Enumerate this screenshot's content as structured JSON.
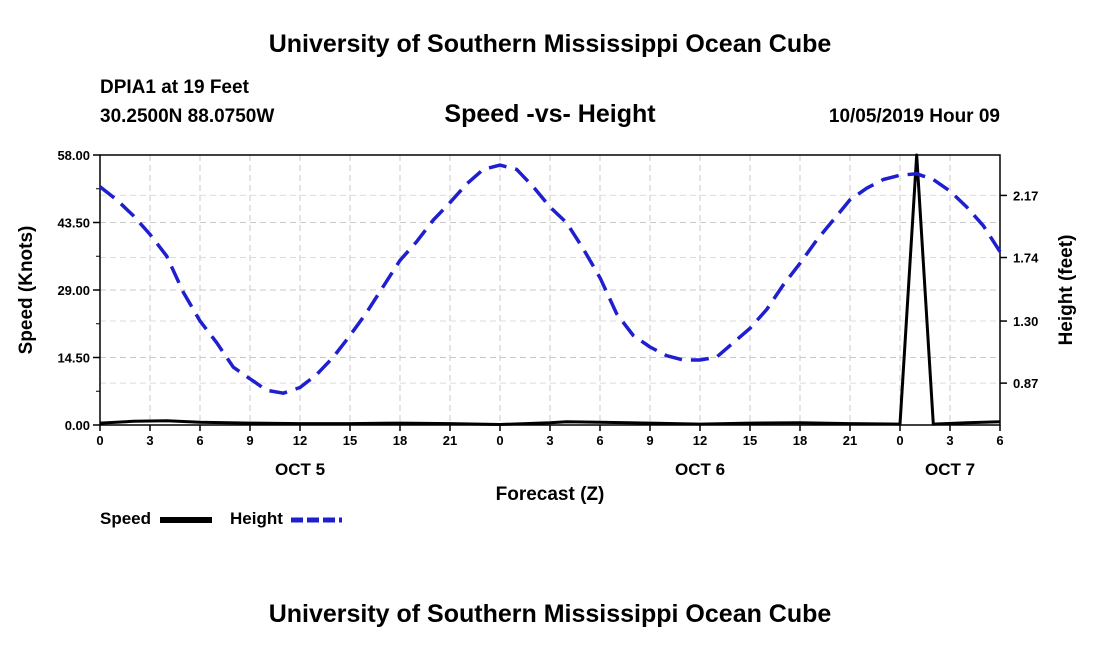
{
  "header": {
    "title": "University of Southern Mississippi Ocean Cube",
    "station_name": "DPIA1 at 19 Feet",
    "station_coords": "30.2500N 88.0750W",
    "chart_title": "Speed -vs- Height",
    "datetime": "10/05/2019 Hour 09"
  },
  "footer": {
    "title": "University of Southern Mississippi Ocean Cube"
  },
  "legend": {
    "speed_label": "Speed",
    "height_label": "Height",
    "speed_color": "#000000",
    "height_color": "#1f1fd0"
  },
  "chart_data": {
    "type": "line",
    "title": "Speed -vs- Height",
    "xlabel": "Forecast (Z)",
    "ylabel_left": "Speed (Knots)",
    "ylabel_right": "Height (feet)",
    "x_range": [
      0,
      54
    ],
    "x_ticks": [
      {
        "x": 0,
        "label": "0"
      },
      {
        "x": 3,
        "label": "3"
      },
      {
        "x": 6,
        "label": "6"
      },
      {
        "x": 9,
        "label": "9"
      },
      {
        "x": 12,
        "label": "12"
      },
      {
        "x": 15,
        "label": "15"
      },
      {
        "x": 18,
        "label": "18"
      },
      {
        "x": 21,
        "label": "21"
      },
      {
        "x": 24,
        "label": "0"
      },
      {
        "x": 27,
        "label": "3"
      },
      {
        "x": 30,
        "label": "6"
      },
      {
        "x": 33,
        "label": "9"
      },
      {
        "x": 36,
        "label": "12"
      },
      {
        "x": 39,
        "label": "15"
      },
      {
        "x": 42,
        "label": "18"
      },
      {
        "x": 45,
        "label": "21"
      },
      {
        "x": 48,
        "label": "0"
      },
      {
        "x": 51,
        "label": "3"
      },
      {
        "x": 54,
        "label": "6"
      }
    ],
    "day_labels": [
      {
        "x": 12,
        "label": "OCT 5"
      },
      {
        "x": 36,
        "label": "OCT 6"
      },
      {
        "x": 51,
        "label": "OCT 7"
      }
    ],
    "y_left": {
      "range": [
        0,
        58
      ],
      "ticks": [
        "0.00",
        "14.50",
        "29.00",
        "43.50",
        "58.00"
      ]
    },
    "y_right": {
      "range": [
        0.58,
        2.45
      ],
      "ticks": [
        "0.87",
        "1.30",
        "1.74",
        "2.17"
      ]
    },
    "grid": true,
    "series": [
      {
        "name": "Speed",
        "axis": "left",
        "style": "solid",
        "color": "#000000",
        "points": [
          [
            0,
            0.4
          ],
          [
            2,
            0.8
          ],
          [
            4,
            0.9
          ],
          [
            6,
            0.6
          ],
          [
            9,
            0.4
          ],
          [
            12,
            0.3
          ],
          [
            15,
            0.3
          ],
          [
            18,
            0.4
          ],
          [
            21,
            0.3
          ],
          [
            24,
            0.1
          ],
          [
            27,
            0.5
          ],
          [
            28,
            0.7
          ],
          [
            30,
            0.6
          ],
          [
            33,
            0.4
          ],
          [
            36,
            0.2
          ],
          [
            39,
            0.4
          ],
          [
            42,
            0.5
          ],
          [
            45,
            0.3
          ],
          [
            48,
            0.2
          ],
          [
            49,
            58
          ],
          [
            50,
            0.2
          ],
          [
            52,
            0.5
          ],
          [
            54,
            0.7
          ]
        ]
      },
      {
        "name": "Height",
        "axis": "right",
        "style": "dashed",
        "color": "#1f1fd0",
        "points": [
          [
            0,
            2.23
          ],
          [
            1,
            2.14
          ],
          [
            2,
            2.03
          ],
          [
            3,
            1.9
          ],
          [
            4,
            1.75
          ],
          [
            5,
            1.5
          ],
          [
            6,
            1.3
          ],
          [
            7,
            1.15
          ],
          [
            8,
            0.98
          ],
          [
            9,
            0.9
          ],
          [
            10,
            0.82
          ],
          [
            11,
            0.8
          ],
          [
            12,
            0.84
          ],
          [
            13,
            0.93
          ],
          [
            14,
            1.05
          ],
          [
            15,
            1.2
          ],
          [
            16,
            1.36
          ],
          [
            17,
            1.54
          ],
          [
            18,
            1.72
          ],
          [
            19,
            1.85
          ],
          [
            20,
            2.0
          ],
          [
            21,
            2.12
          ],
          [
            22,
            2.25
          ],
          [
            23,
            2.35
          ],
          [
            24,
            2.38
          ],
          [
            25,
            2.35
          ],
          [
            26,
            2.23
          ],
          [
            27,
            2.09
          ],
          [
            28,
            1.98
          ],
          [
            29,
            1.8
          ],
          [
            30,
            1.6
          ],
          [
            31,
            1.35
          ],
          [
            32,
            1.2
          ],
          [
            33,
            1.12
          ],
          [
            34,
            1.06
          ],
          [
            35,
            1.03
          ],
          [
            36,
            1.03
          ],
          [
            37,
            1.05
          ],
          [
            38,
            1.15
          ],
          [
            39,
            1.25
          ],
          [
            40,
            1.38
          ],
          [
            41,
            1.55
          ],
          [
            42,
            1.7
          ],
          [
            43,
            1.86
          ],
          [
            44,
            2.0
          ],
          [
            45,
            2.14
          ],
          [
            46,
            2.22
          ],
          [
            47,
            2.28
          ],
          [
            48,
            2.31
          ],
          [
            49,
            2.32
          ],
          [
            50,
            2.28
          ],
          [
            51,
            2.2
          ],
          [
            52,
            2.09
          ],
          [
            53,
            1.96
          ],
          [
            54,
            1.78
          ]
        ]
      }
    ]
  }
}
